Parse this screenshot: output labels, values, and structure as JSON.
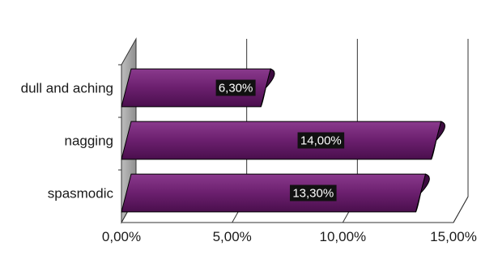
{
  "chart_data": {
    "type": "bar",
    "orientation": "horizontal",
    "style": "3d",
    "categories": [
      "dull and aching",
      "nagging",
      "spasmodic"
    ],
    "values": [
      6.3,
      14.0,
      13.3
    ],
    "data_labels": [
      "6,30%",
      "14,00%",
      "13,30%"
    ],
    "xlim": [
      0,
      15
    ],
    "x_ticks": [
      0,
      5,
      10,
      15
    ],
    "x_tick_labels": [
      "0,00%",
      "5,00%",
      "10,00%",
      "15,00%"
    ],
    "title": "",
    "xlabel": "",
    "ylabel": "",
    "grid": true,
    "legend": "none",
    "colors": {
      "bar_front": "#6b1f6e",
      "bar_top": "#b070b3",
      "bar_end": "#3d0c40",
      "side_wall": "#a9a9a9",
      "label_box": "#111111"
    }
  }
}
